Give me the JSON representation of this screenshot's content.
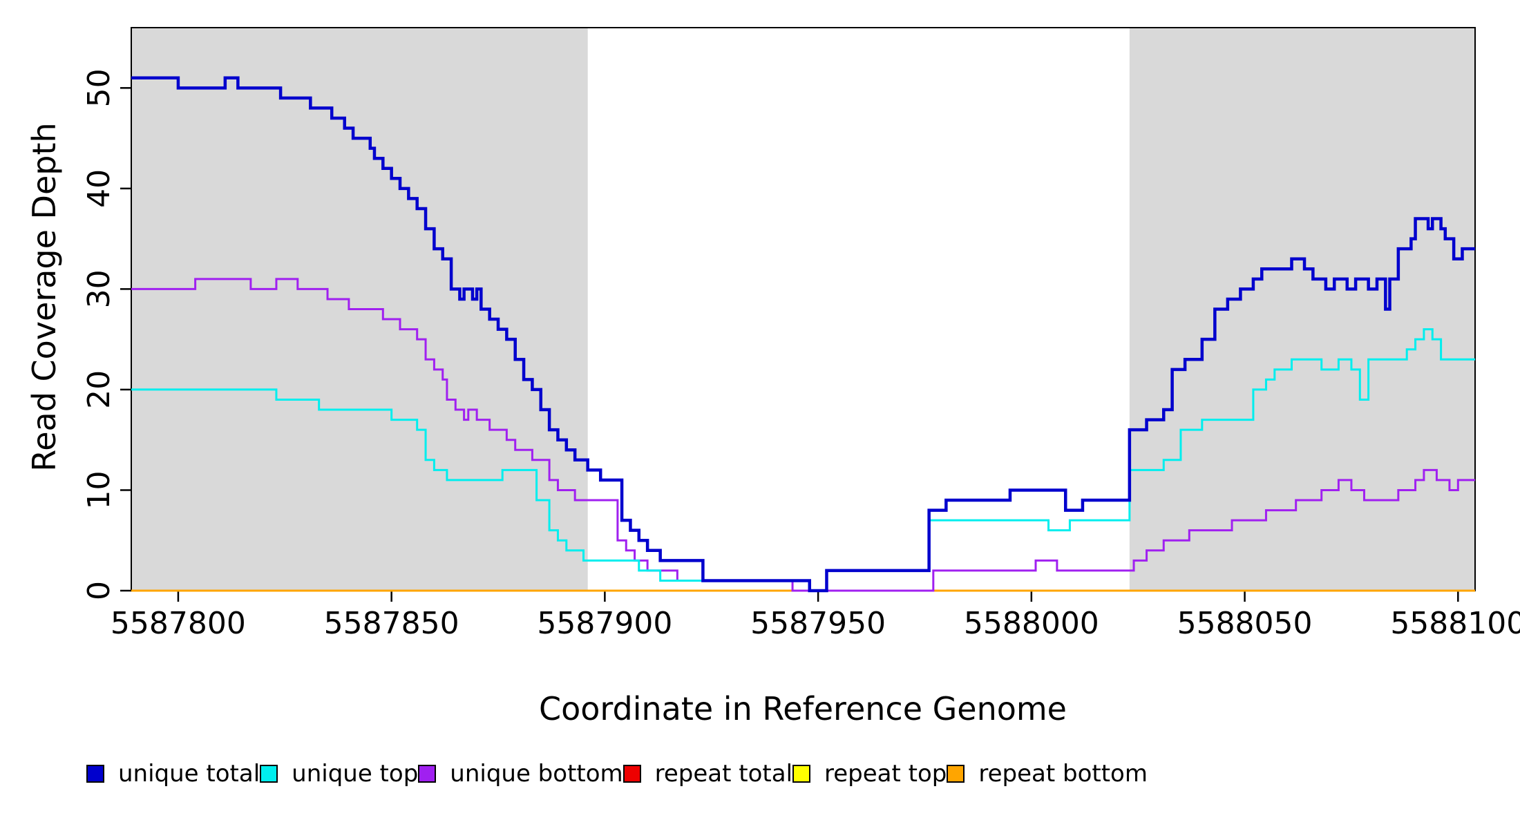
{
  "chart_data": {
    "type": "line",
    "step": true,
    "title": "",
    "xlabel": "Coordinate in Reference Genome",
    "ylabel": "Read Coverage Depth",
    "xlim": [
      5587789,
      5588104
    ],
    "ylim": [
      0,
      56
    ],
    "x_ticks": [
      5587800,
      5587850,
      5587900,
      5587950,
      5588000,
      5588050,
      5588100
    ],
    "y_ticks": [
      0,
      10,
      20,
      30,
      40,
      50
    ],
    "grid": false,
    "legend_position": "bottom",
    "shaded_regions": [
      {
        "x0": 5587789,
        "x1": 5587896,
        "color": "#d9d9d9"
      },
      {
        "x0": 5588023,
        "x1": 5588104,
        "color": "#d9d9d9"
      }
    ],
    "series": [
      {
        "name": "repeat total",
        "color": "#ee0000",
        "width": 3,
        "points": [
          [
            5587789,
            0
          ],
          [
            5588104,
            0
          ]
        ]
      },
      {
        "name": "repeat top",
        "color": "#ffff00",
        "width": 3,
        "points": [
          [
            5587789,
            0
          ],
          [
            5588104,
            0
          ]
        ]
      },
      {
        "name": "repeat bottom",
        "color": "#ffa500",
        "width": 3,
        "points": [
          [
            5587789,
            0
          ],
          [
            5588104,
            0
          ]
        ]
      },
      {
        "name": "unique bottom",
        "color": "#a020f0",
        "width": 3,
        "points": [
          [
            5587789,
            30
          ],
          [
            5587804,
            31
          ],
          [
            5587817,
            30
          ],
          [
            5587823,
            31
          ],
          [
            5587828,
            30
          ],
          [
            5587835,
            29
          ],
          [
            5587840,
            28
          ],
          [
            5587848,
            27
          ],
          [
            5587852,
            26
          ],
          [
            5587856,
            25
          ],
          [
            5587858,
            23
          ],
          [
            5587860,
            22
          ],
          [
            5587862,
            21
          ],
          [
            5587863,
            19
          ],
          [
            5587865,
            18
          ],
          [
            5587867,
            17
          ],
          [
            5587868,
            18
          ],
          [
            5587870,
            17
          ],
          [
            5587873,
            16
          ],
          [
            5587877,
            15
          ],
          [
            5587879,
            14
          ],
          [
            5587883,
            13
          ],
          [
            5587887,
            11
          ],
          [
            5587889,
            10
          ],
          [
            5587893,
            9
          ],
          [
            5587903,
            5
          ],
          [
            5587905,
            4
          ],
          [
            5587907,
            3
          ],
          [
            5587910,
            2
          ],
          [
            5587917,
            1
          ],
          [
            5587944,
            0
          ],
          [
            5587977,
            2
          ],
          [
            5588001,
            3
          ],
          [
            5588006,
            2
          ],
          [
            5588024,
            3
          ],
          [
            5588027,
            4
          ],
          [
            5588031,
            5
          ],
          [
            5588037,
            6
          ],
          [
            5588047,
            7
          ],
          [
            5588055,
            8
          ],
          [
            5588062,
            9
          ],
          [
            5588068,
            10
          ],
          [
            5588072,
            11
          ],
          [
            5588075,
            10
          ],
          [
            5588078,
            9
          ],
          [
            5588086,
            10
          ],
          [
            5588090,
            11
          ],
          [
            5588092,
            12
          ],
          [
            5588095,
            11
          ],
          [
            5588098,
            10
          ],
          [
            5588100,
            11
          ]
        ]
      },
      {
        "name": "unique top",
        "color": "#00eeee",
        "width": 3,
        "points": [
          [
            5587789,
            20
          ],
          [
            5587823,
            19
          ],
          [
            5587833,
            18
          ],
          [
            5587850,
            17
          ],
          [
            5587856,
            16
          ],
          [
            5587858,
            13
          ],
          [
            5587860,
            12
          ],
          [
            5587863,
            11
          ],
          [
            5587876,
            12
          ],
          [
            5587884,
            9
          ],
          [
            5587887,
            6
          ],
          [
            5587889,
            5
          ],
          [
            5587891,
            4
          ],
          [
            5587895,
            3
          ],
          [
            5587908,
            2
          ],
          [
            5587913,
            1
          ],
          [
            5587948,
            0
          ],
          [
            5587952,
            2
          ],
          [
            5587976,
            7
          ],
          [
            5588004,
            6
          ],
          [
            5588009,
            7
          ],
          [
            5588023,
            12
          ],
          [
            5588031,
            13
          ],
          [
            5588035,
            16
          ],
          [
            5588040,
            17
          ],
          [
            5588052,
            20
          ],
          [
            5588055,
            21
          ],
          [
            5588057,
            22
          ],
          [
            5588061,
            23
          ],
          [
            5588068,
            22
          ],
          [
            5588072,
            23
          ],
          [
            5588075,
            22
          ],
          [
            5588077,
            19
          ],
          [
            5588079,
            23
          ],
          [
            5588088,
            24
          ],
          [
            5588090,
            25
          ],
          [
            5588092,
            26
          ],
          [
            5588094,
            25
          ],
          [
            5588096,
            23
          ]
        ]
      },
      {
        "name": "unique total",
        "color": "#0000cd",
        "width": 4.5,
        "points": [
          [
            5587789,
            51
          ],
          [
            5587800,
            50
          ],
          [
            5587811,
            51
          ],
          [
            5587814,
            50
          ],
          [
            5587824,
            49
          ],
          [
            5587831,
            48
          ],
          [
            5587836,
            47
          ],
          [
            5587839,
            46
          ],
          [
            5587841,
            45
          ],
          [
            5587845,
            44
          ],
          [
            5587846,
            43
          ],
          [
            5587848,
            42
          ],
          [
            5587850,
            41
          ],
          [
            5587852,
            40
          ],
          [
            5587854,
            39
          ],
          [
            5587856,
            38
          ],
          [
            5587858,
            36
          ],
          [
            5587860,
            34
          ],
          [
            5587862,
            33
          ],
          [
            5587864,
            30
          ],
          [
            5587866,
            29
          ],
          [
            5587867,
            30
          ],
          [
            5587869,
            29
          ],
          [
            5587870,
            30
          ],
          [
            5587871,
            28
          ],
          [
            5587873,
            27
          ],
          [
            5587875,
            26
          ],
          [
            5587877,
            25
          ],
          [
            5587879,
            23
          ],
          [
            5587881,
            21
          ],
          [
            5587883,
            20
          ],
          [
            5587885,
            18
          ],
          [
            5587887,
            16
          ],
          [
            5587889,
            15
          ],
          [
            5587891,
            14
          ],
          [
            5587893,
            13
          ],
          [
            5587896,
            12
          ],
          [
            5587899,
            11
          ],
          [
            5587904,
            7
          ],
          [
            5587906,
            6
          ],
          [
            5587908,
            5
          ],
          [
            5587910,
            4
          ],
          [
            5587913,
            3
          ],
          [
            5587923,
            1
          ],
          [
            5587948,
            0
          ],
          [
            5587952,
            2
          ],
          [
            5587976,
            8
          ],
          [
            5587980,
            9
          ],
          [
            5587995,
            10
          ],
          [
            5588008,
            8
          ],
          [
            5588012,
            9
          ],
          [
            5588023,
            16
          ],
          [
            5588027,
            17
          ],
          [
            5588031,
            18
          ],
          [
            5588033,
            22
          ],
          [
            5588036,
            23
          ],
          [
            5588040,
            25
          ],
          [
            5588043,
            28
          ],
          [
            5588046,
            29
          ],
          [
            5588049,
            30
          ],
          [
            5588052,
            31
          ],
          [
            5588054,
            32
          ],
          [
            5588061,
            33
          ],
          [
            5588064,
            32
          ],
          [
            5588066,
            31
          ],
          [
            5588069,
            30
          ],
          [
            5588071,
            31
          ],
          [
            5588074,
            30
          ],
          [
            5588076,
            31
          ],
          [
            5588079,
            30
          ],
          [
            5588081,
            31
          ],
          [
            5588083,
            28
          ],
          [
            5588084,
            31
          ],
          [
            5588086,
            34
          ],
          [
            5588089,
            35
          ],
          [
            5588090,
            37
          ],
          [
            5588093,
            36
          ],
          [
            5588094,
            37
          ],
          [
            5588096,
            36
          ],
          [
            5588097,
            35
          ],
          [
            5588099,
            33
          ],
          [
            5588101,
            34
          ]
        ]
      }
    ],
    "legend": [
      {
        "label": "unique total",
        "color": "#0000cd"
      },
      {
        "label": "unique top",
        "color": "#00eeee"
      },
      {
        "label": "unique bottom",
        "color": "#a020f0"
      },
      {
        "label": "repeat total",
        "color": "#ee0000"
      },
      {
        "label": "repeat top",
        "color": "#ffff00"
      },
      {
        "label": "repeat bottom",
        "color": "#ffa500"
      }
    ]
  }
}
